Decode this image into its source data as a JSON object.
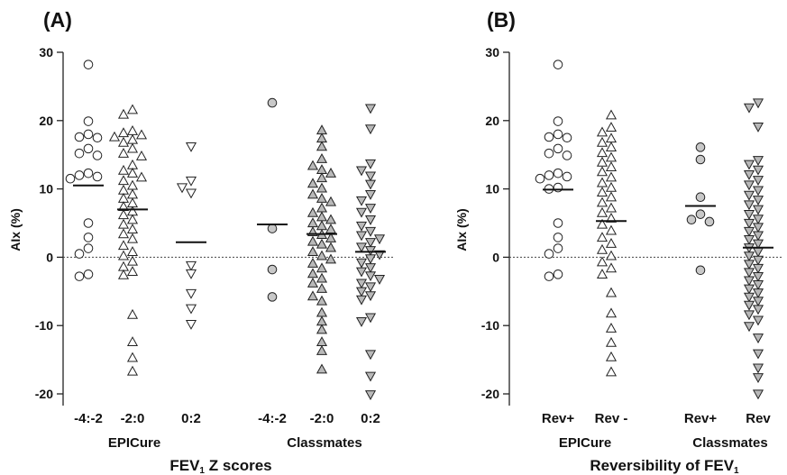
{
  "chart_data": [
    {
      "type": "scatter",
      "panel_label": "(A)",
      "ylabel": "AIx (%)",
      "xlabel_main": "FEV",
      "xlabel_sub": "1",
      "xlabel_tail": " Z scores",
      "ylim": [
        -22,
        30
      ],
      "yticks": [
        30,
        20,
        10,
        0,
        -10,
        -20
      ],
      "zero_line": "dotted",
      "groups": [
        {
          "label": "EPICure",
          "categories": [
            "-4:-2",
            "-2:0",
            "0:2"
          ]
        },
        {
          "label": "Classmates",
          "categories": [
            "-4:-2",
            "-2:0",
            "0:2"
          ]
        }
      ],
      "series": [
        {
          "group": "EPICure",
          "category": "-4:-2",
          "marker": "circle",
          "fill": "#ffffff",
          "mean": 10.5,
          "values": [
            28.2,
            19.9,
            18.0,
            17.6,
            17.5,
            15.9,
            15.2,
            14.9,
            12.3,
            12.0,
            11.8,
            11.5,
            5.0,
            2.9,
            1.3,
            0.5,
            -2.5,
            -2.8
          ]
        },
        {
          "group": "EPICure",
          "category": "-2:0",
          "marker": "triangle-up",
          "fill": "#ffffff",
          "mean": 7.0,
          "values": [
            21.6,
            20.9,
            18.5,
            18.2,
            17.9,
            17.6,
            17.2,
            16.8,
            15.9,
            15.2,
            14.8,
            13.5,
            12.7,
            12.3,
            11.7,
            11.2,
            10.5,
            9.8,
            9.2,
            8.6,
            7.9,
            7.4,
            6.7,
            6.2,
            5.5,
            4.8,
            4.1,
            3.4,
            2.7,
            1.7,
            0.8,
            0.2,
            -0.6,
            -1.4,
            -2.1,
            -2.6,
            -8.4,
            -12.4,
            -14.7,
            -16.7
          ]
        },
        {
          "group": "EPICure",
          "category": "0:2",
          "marker": "triangle-down",
          "fill": "#ffffff",
          "mean": 2.2,
          "values": [
            16.2,
            11.2,
            10.2,
            9.4,
            -1.2,
            -2.4,
            -5.3,
            -7.5,
            -9.8
          ]
        },
        {
          "group": "Classmates",
          "category": "-4:-2",
          "marker": "circle",
          "fill": "#c8c8c8",
          "mean": 4.8,
          "values": [
            22.6,
            4.2,
            -1.8,
            -5.8
          ]
        },
        {
          "group": "Classmates",
          "category": "-2:0",
          "marker": "triangle-up",
          "fill": "#b9b9b9",
          "mean": 3.4,
          "values": [
            18.6,
            17.4,
            16.2,
            14.4,
            13.4,
            12.8,
            12.3,
            11.6,
            10.8,
            10.1,
            9.2,
            8.6,
            8.1,
            7.2,
            6.5,
            5.9,
            5.5,
            5.0,
            4.6,
            4.1,
            3.7,
            3.3,
            2.8,
            2.3,
            1.9,
            1.4,
            0.8,
            0.2,
            -0.3,
            -0.9,
            -1.6,
            -2.4,
            -3.1,
            -3.8,
            -4.6,
            -5.7,
            -6.4,
            -8.1,
            -9.4,
            -10.6,
            -12.4,
            -13.7,
            -16.4
          ]
        },
        {
          "group": "Classmates",
          "category": "0:2",
          "marker": "triangle-down",
          "fill": "#b9b9b9",
          "mean": 0.8,
          "values": [
            21.8,
            18.8,
            13.7,
            12.7,
            11.9,
            10.7,
            9.2,
            8.3,
            7.2,
            6.6,
            5.5,
            4.6,
            3.8,
            3.2,
            2.7,
            2.2,
            1.5,
            1.0,
            0.4,
            -0.2,
            -0.8,
            -1.5,
            -2.1,
            -2.7,
            -3.2,
            -3.8,
            -4.3,
            -5.0,
            -5.6,
            -6.2,
            -8.8,
            -9.4,
            -14.2,
            -17.4,
            -20.1
          ]
        }
      ]
    },
    {
      "type": "scatter",
      "panel_label": "(B)",
      "ylabel": "AIx (%)",
      "xlabel_main": "Reversibility of FEV",
      "xlabel_sub": "1",
      "xlabel_tail": "",
      "ylim": [
        -22,
        30
      ],
      "yticks": [
        30,
        20,
        10,
        0,
        -10,
        -20
      ],
      "zero_line": "dotted",
      "groups": [
        {
          "label": "EPICure",
          "categories": [
            "Rev+",
            "Rev -"
          ]
        },
        {
          "label": "Classmates",
          "categories": [
            "Rev+",
            "Rev"
          ]
        }
      ],
      "series": [
        {
          "group": "EPICure",
          "category": "Rev+",
          "marker": "circle",
          "fill": "#ffffff",
          "mean": 9.9,
          "values": [
            28.2,
            19.9,
            18.0,
            17.6,
            17.5,
            15.9,
            15.2,
            14.9,
            12.3,
            12.0,
            11.8,
            11.5,
            10.2,
            10.0,
            5.0,
            2.9,
            1.3,
            0.5,
            -2.5,
            -2.8
          ]
        },
        {
          "group": "EPICure",
          "category": "Rev -",
          "marker": "triangle-up",
          "fill": "#ffffff",
          "mean": 5.3,
          "values": [
            20.8,
            19.0,
            18.3,
            17.4,
            16.8,
            16.1,
            15.3,
            14.6,
            13.9,
            13.2,
            12.5,
            11.7,
            10.9,
            10.2,
            9.5,
            8.8,
            8.0,
            7.2,
            6.5,
            5.7,
            4.8,
            3.9,
            2.9,
            2.0,
            1.1,
            0.2,
            -0.7,
            -1.6,
            -2.5,
            -5.2,
            -8.2,
            -10.4,
            -12.5,
            -14.6,
            -16.8
          ]
        },
        {
          "group": "Classmates",
          "category": "Rev+",
          "marker": "circle",
          "fill": "#c8c8c8",
          "mean": 7.5,
          "values": [
            16.1,
            14.3,
            8.8,
            6.3,
            5.5,
            5.2,
            -1.9
          ]
        },
        {
          "group": "Classmates",
          "category": "Rev",
          "marker": "triangle-down",
          "fill": "#b9b9b9",
          "mean": 1.4,
          "values": [
            22.6,
            21.9,
            19.1,
            14.2,
            13.6,
            12.8,
            12.1,
            11.3,
            10.6,
            9.8,
            9.1,
            8.4,
            7.7,
            7.0,
            6.3,
            5.6,
            5.0,
            4.4,
            3.8,
            3.2,
            2.6,
            2.0,
            1.4,
            0.8,
            0.2,
            -0.4,
            -1.0,
            -1.6,
            -2.2,
            -2.8,
            -3.4,
            -4.0,
            -4.6,
            -5.2,
            -5.8,
            -6.4,
            -7.0,
            -7.6,
            -8.4,
            -9.2,
            -10.1,
            -11.8,
            -14.1,
            -16.2,
            -17.6,
            -20.0
          ]
        }
      ]
    }
  ]
}
